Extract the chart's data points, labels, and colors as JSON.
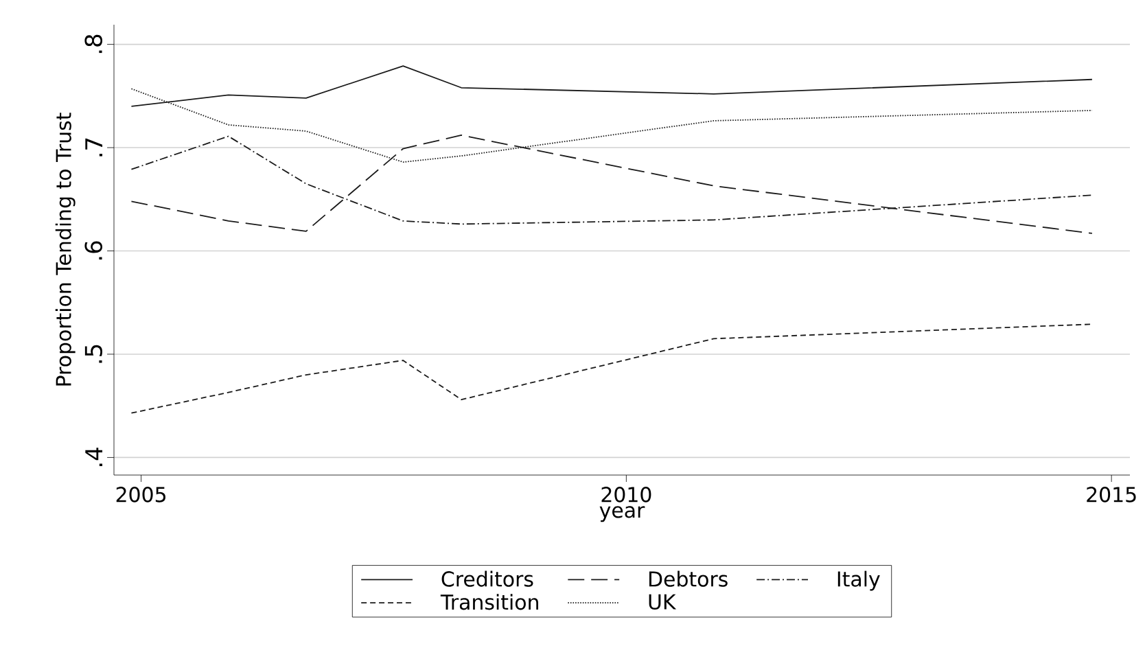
{
  "chart_data": {
    "type": "line",
    "xlabel": "year",
    "ylabel": "Proportion Tending to Trust",
    "xlim": [
      2004.72,
      2015.19
    ],
    "ylim": [
      0.383,
      0.819
    ],
    "xticks": [
      2005,
      2010,
      2015
    ],
    "yticks": [
      {
        "value": 0.4,
        "label": ".4"
      },
      {
        "value": 0.5,
        "label": ".5"
      },
      {
        "value": 0.6,
        "label": ".6"
      },
      {
        "value": 0.7,
        "label": ".7"
      },
      {
        "value": 0.8,
        "label": ".8"
      }
    ],
    "grid": "y",
    "legend": "bottom",
    "marker": "none",
    "x": [
      2004.9,
      2005.9,
      2006.7,
      2007.7,
      2008.3,
      2010.9,
      2014.8
    ],
    "series": [
      {
        "name": "Creditors",
        "color": "#1a1a1a",
        "line_style": "solid",
        "values": [
          0.74,
          0.751,
          0.748,
          0.779,
          0.758,
          0.752,
          0.766
        ]
      },
      {
        "name": "Debtors",
        "color": "#1a1a1a",
        "line_style": "longdashed",
        "values": [
          0.648,
          0.629,
          0.619,
          0.699,
          0.712,
          0.663,
          0.617
        ]
      },
      {
        "name": "Italy",
        "color": "#1a1a1a",
        "line_style": "dashdot",
        "values": [
          0.679,
          0.711,
          0.665,
          0.629,
          0.626,
          0.63,
          0.654
        ]
      },
      {
        "name": "Transition",
        "color": "#1a1a1a",
        "line_style": "dashed",
        "values": [
          0.443,
          0.463,
          0.48,
          0.494,
          0.456,
          0.515,
          0.529
        ]
      },
      {
        "name": "UK",
        "color": "#1a1a1a",
        "line_style": "dotted",
        "values": [
          0.757,
          0.722,
          0.716,
          0.686,
          0.692,
          0.726,
          0.736
        ]
      }
    ]
  }
}
